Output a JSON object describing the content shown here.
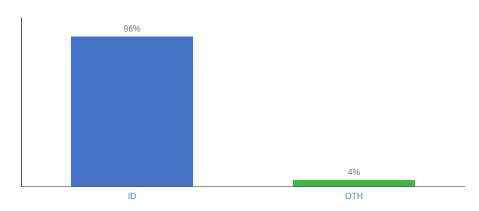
{
  "chart_data": {
    "type": "bar",
    "categories": [
      "ID",
      "OTH"
    ],
    "values": [
      96,
      4
    ],
    "value_labels": [
      "96%",
      "4%"
    ],
    "colors": [
      "#4472c4",
      "#3cb843"
    ],
    "ylim": [
      0,
      108
    ],
    "data_labels": true,
    "tick_labels": "x",
    "grid": false
  }
}
